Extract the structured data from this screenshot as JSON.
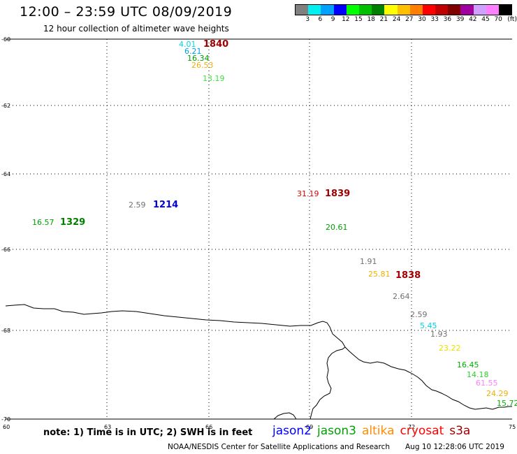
{
  "header": {
    "title": "12:00 – 23:59 UTC 08/09/2019",
    "subtitle": "12 hour collection of altimeter wave heights"
  },
  "legend": {
    "unit": "(ft)",
    "ticks": [
      "3",
      "6",
      "9",
      "12",
      "15",
      "18",
      "21",
      "24",
      "27",
      "30",
      "33",
      "36",
      "39",
      "42",
      "45",
      "70"
    ],
    "colors": [
      "#808080",
      "#00f0f0",
      "#00a0ff",
      "#0000ff",
      "#00ff00",
      "#00c000",
      "#008000",
      "#ffff00",
      "#ffc000",
      "#ff8000",
      "#ff0000",
      "#c00000",
      "#800000",
      "#a000a0",
      "#d0a0ff",
      "#ff80ff",
      "#000000"
    ]
  },
  "map": {
    "lat_labels": [
      "-60",
      "-62",
      "-64",
      "-66",
      "-68",
      "-70"
    ],
    "lon_labels": [
      "60",
      "63",
      "66",
      "69",
      "72",
      "75"
    ],
    "observations": [
      {
        "text": "4.01",
        "color": "#00d8e0"
      },
      {
        "text": "6.21",
        "color": "#00a0e0"
      },
      {
        "text": "16.34",
        "color": "#00a000"
      },
      {
        "text": "26.53",
        "color": "#f0b000"
      },
      {
        "text": "13.19",
        "color": "#40e040"
      },
      {
        "text": "2.59",
        "color": "#707070"
      },
      {
        "text": "16.57",
        "color": "#00a000"
      },
      {
        "text": "31.19",
        "color": "#e00000"
      },
      {
        "text": "20.61",
        "color": "#00a000"
      },
      {
        "text": "1.91",
        "color": "#707070"
      },
      {
        "text": "25.81",
        "color": "#f0b000"
      },
      {
        "text": "2.64",
        "color": "#707070"
      },
      {
        "text": "2.59",
        "color": "#707070"
      },
      {
        "text": "5.45",
        "color": "#00d0e8"
      },
      {
        "text": "1.93",
        "color": "#707070"
      },
      {
        "text": "23.22",
        "color": "#e8e000"
      },
      {
        "text": "16.45",
        "color": "#00b000"
      },
      {
        "text": "14.18",
        "color": "#30d030"
      },
      {
        "text": "61.55",
        "color": "#ff80ff"
      },
      {
        "text": "24.29",
        "color": "#f0b000"
      },
      {
        "text": "15.72",
        "color": "#00b000"
      }
    ],
    "times": [
      {
        "text": "1840",
        "color": "#a00000"
      },
      {
        "text": "1214",
        "color": "#0000e0"
      },
      {
        "text": "1329",
        "color": "#008000"
      },
      {
        "text": "1839",
        "color": "#a00000"
      },
      {
        "text": "1838",
        "color": "#a00000"
      }
    ]
  },
  "footer": {
    "note": "note: 1) Time is in UTC; 2) SWH is in feet",
    "satellites": [
      {
        "name": "jason2",
        "color": "#0000ff"
      },
      {
        "name": "jason3",
        "color": "#00a000"
      },
      {
        "name": "altika",
        "color": "#ff8c00"
      },
      {
        "name": "cryosat",
        "color": "#ff0000"
      },
      {
        "name": "s3a",
        "color": "#a00000"
      }
    ],
    "credit": "NOAA/NESDIS Center for Satellite Applications and Research",
    "generated": "Aug 10 12:28:06 UTC 2019"
  }
}
